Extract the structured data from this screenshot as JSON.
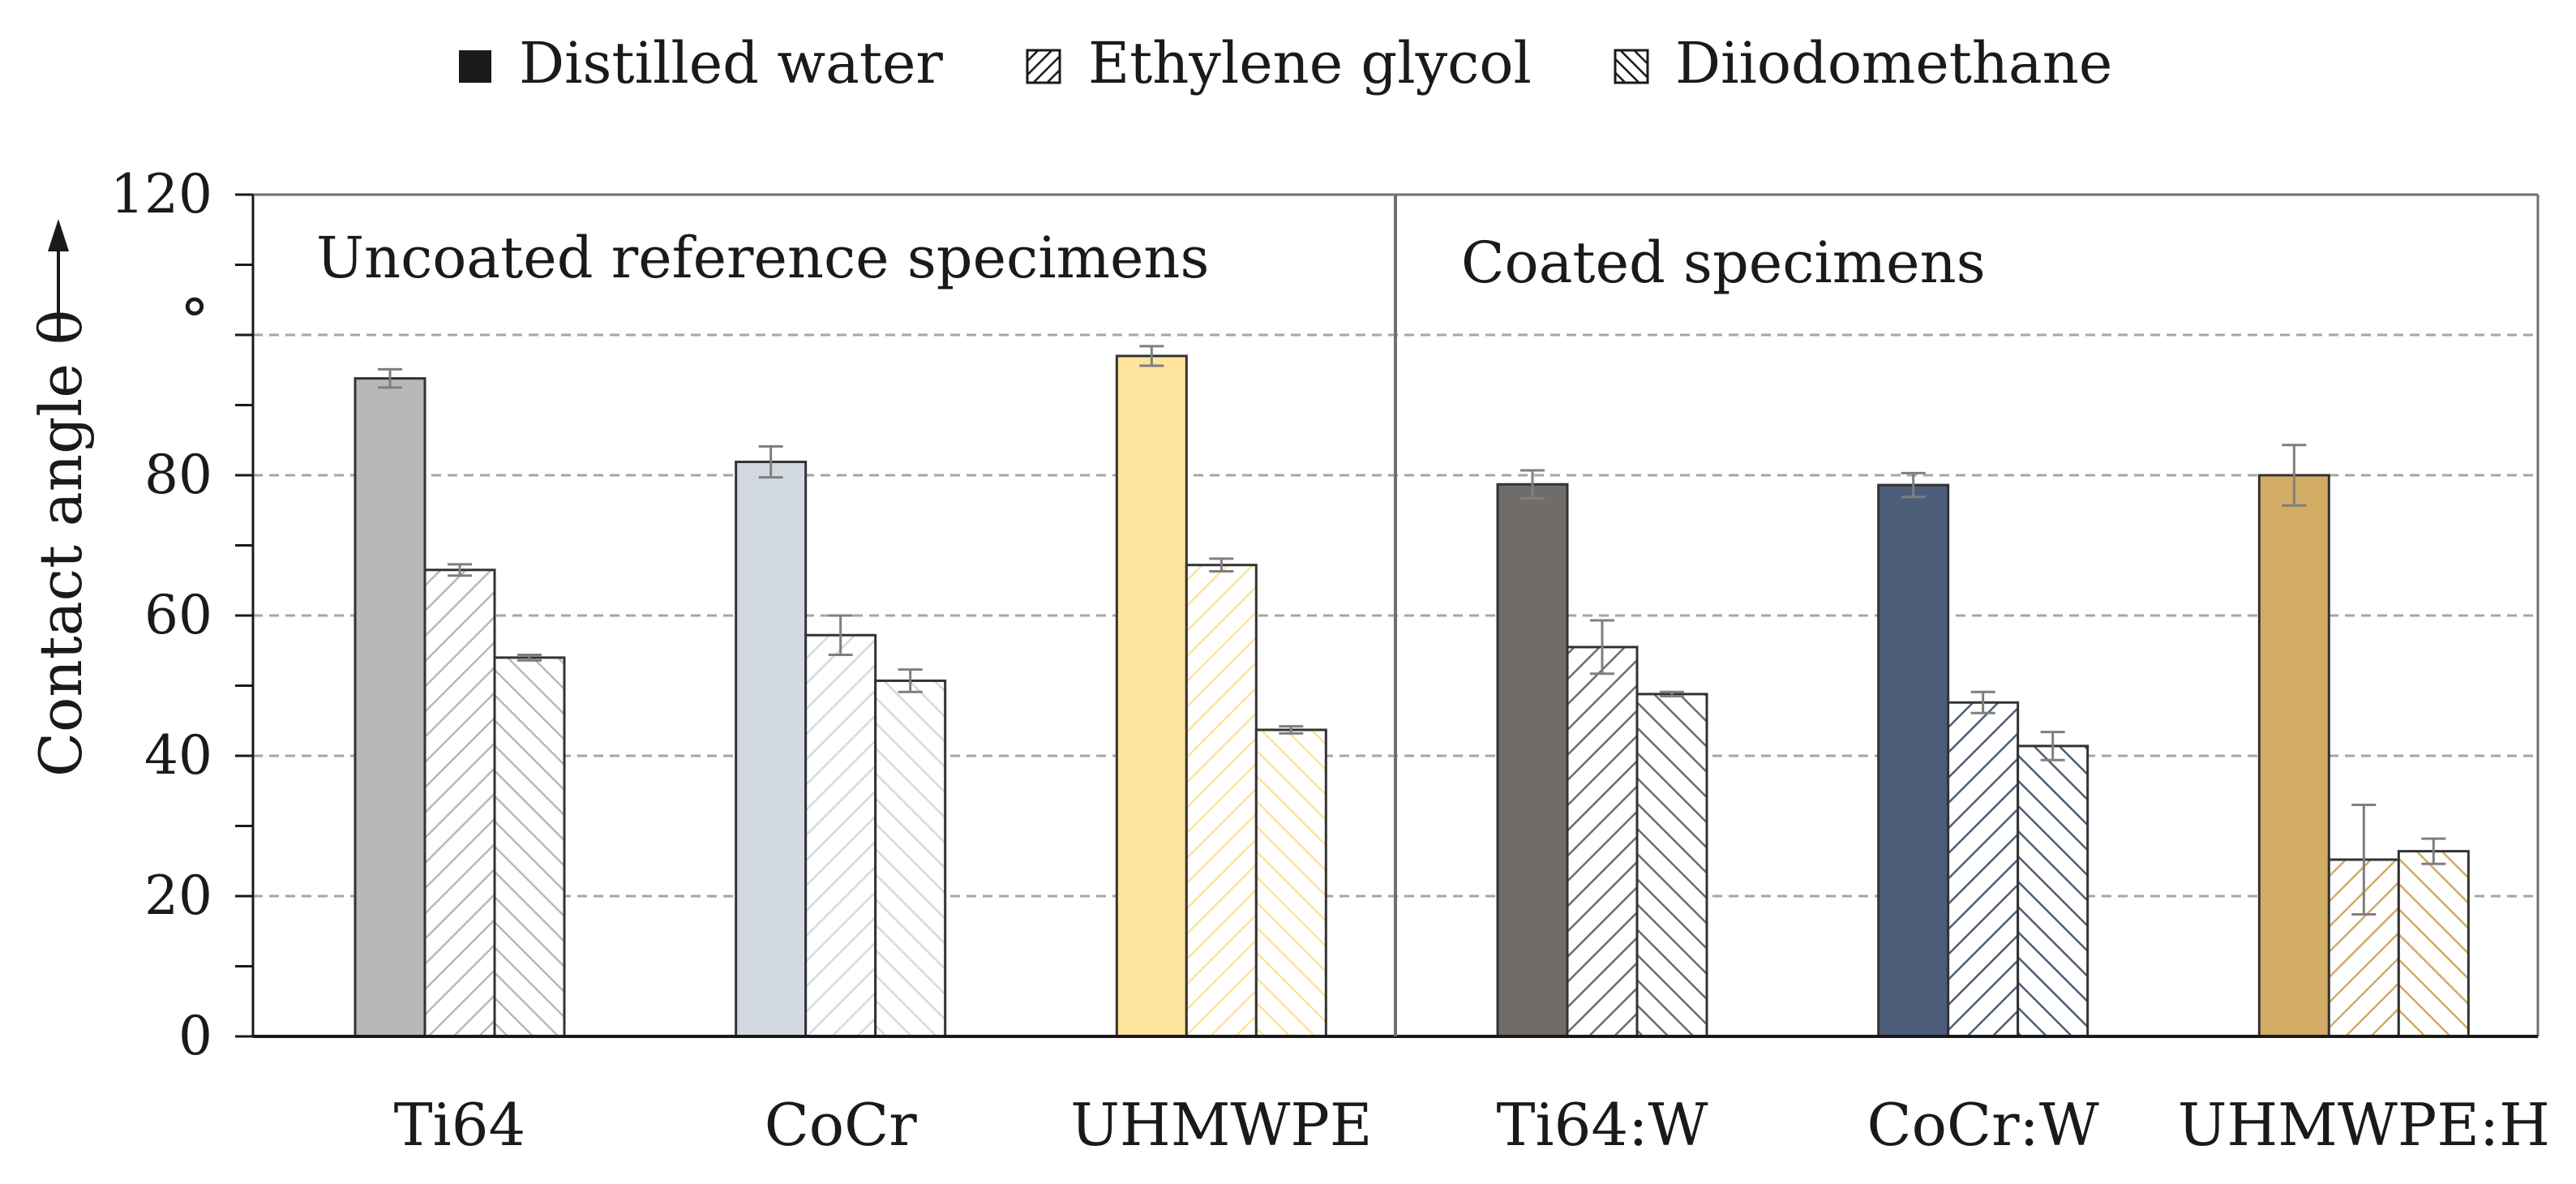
{
  "chart_data": {
    "type": "bar",
    "title": "",
    "xlabel": "",
    "ylabel": "Contact angle θ",
    "yunit": "°",
    "ylim": [
      0,
      120
    ],
    "yticks": [
      0,
      20,
      40,
      60,
      80,
      120
    ],
    "yticks_labels": [
      "0",
      "20",
      "40",
      "60",
      "80",
      "120"
    ],
    "grid": true,
    "legend_position": "top",
    "categories": [
      "Ti64",
      "CoCr",
      "UHMWPE",
      "Ti64:W",
      "CoCr:W",
      "UHMWPE:H"
    ],
    "series": [
      {
        "name": "Distilled water",
        "pattern": "solid",
        "values": [
          93.8,
          81.9,
          97.0,
          78.7,
          78.6,
          80.0
        ],
        "errors": [
          1.3,
          2.2,
          1.4,
          2.0,
          1.7,
          4.3
        ]
      },
      {
        "name": "Ethylene glycol",
        "pattern": "diagonal-up",
        "values": [
          66.5,
          57.2,
          67.2,
          55.5,
          47.6,
          25.2
        ],
        "errors": [
          0.8,
          2.8,
          0.9,
          3.8,
          1.5,
          7.8
        ]
      },
      {
        "name": "Diiodomethane",
        "pattern": "diagonal-down",
        "values": [
          54.0,
          50.7,
          43.7,
          48.8,
          41.4,
          26.4
        ],
        "errors": [
          0.4,
          1.6,
          0.5,
          0.3,
          2.0,
          1.8
        ]
      }
    ],
    "category_colors": [
      "#b8b8b8",
      "#d3d9e1",
      "#fde39b",
      "#706c6a",
      "#4b5d78",
      "#d2ab65"
    ],
    "annotations": [
      "Uncoated reference specimens",
      "Coated specimens"
    ]
  }
}
